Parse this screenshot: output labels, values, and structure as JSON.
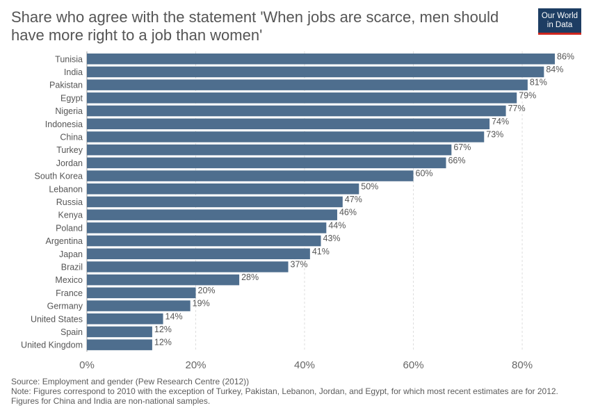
{
  "header": {
    "title": "Share who agree with the statement 'When jobs are scarce, men should have more right to a job than women'",
    "logo_line1": "Our World",
    "logo_line2": "in Data"
  },
  "footer": {
    "source": "Source: Employment and gender (Pew Research Centre (2012))",
    "note": "Note: Figures correspond to 2010 with the exception of Turkey, Pakistan, Lebanon, Jordan, and Egypt, for which most recent estimates are for 2012. Figures for China and India are non-national samples."
  },
  "colors": {
    "bar": "#4e6e8e",
    "grid": "#dddddd",
    "logo_bg": "#1d3d63",
    "logo_accent": "#ce261e"
  },
  "chart_data": {
    "type": "bar",
    "orientation": "horizontal",
    "categories": [
      "Tunisia",
      "India",
      "Pakistan",
      "Egypt",
      "Nigeria",
      "Indonesia",
      "China",
      "Turkey",
      "Jordan",
      "South Korea",
      "Lebanon",
      "Russia",
      "Kenya",
      "Poland",
      "Argentina",
      "Japan",
      "Brazil",
      "Mexico",
      "France",
      "Germany",
      "United States",
      "Spain",
      "United Kingdom"
    ],
    "values": [
      86,
      84,
      81,
      79,
      77,
      74,
      73,
      67,
      66,
      60,
      50,
      47,
      46,
      44,
      43,
      41,
      37,
      28,
      20,
      19,
      14,
      12,
      12
    ],
    "value_labels": [
      "86%",
      "84%",
      "81%",
      "79%",
      "77%",
      "74%",
      "73%",
      "67%",
      "66%",
      "60%",
      "50%",
      "47%",
      "46%",
      "44%",
      "43%",
      "41%",
      "37%",
      "28%",
      "20%",
      "19%",
      "14%",
      "12%",
      "12%"
    ],
    "xlim": [
      0,
      86
    ],
    "x_ticks": [
      0,
      20,
      40,
      60,
      80
    ],
    "x_tick_labels": [
      "0%",
      "20%",
      "40%",
      "60%",
      "80%"
    ],
    "grid": true
  }
}
